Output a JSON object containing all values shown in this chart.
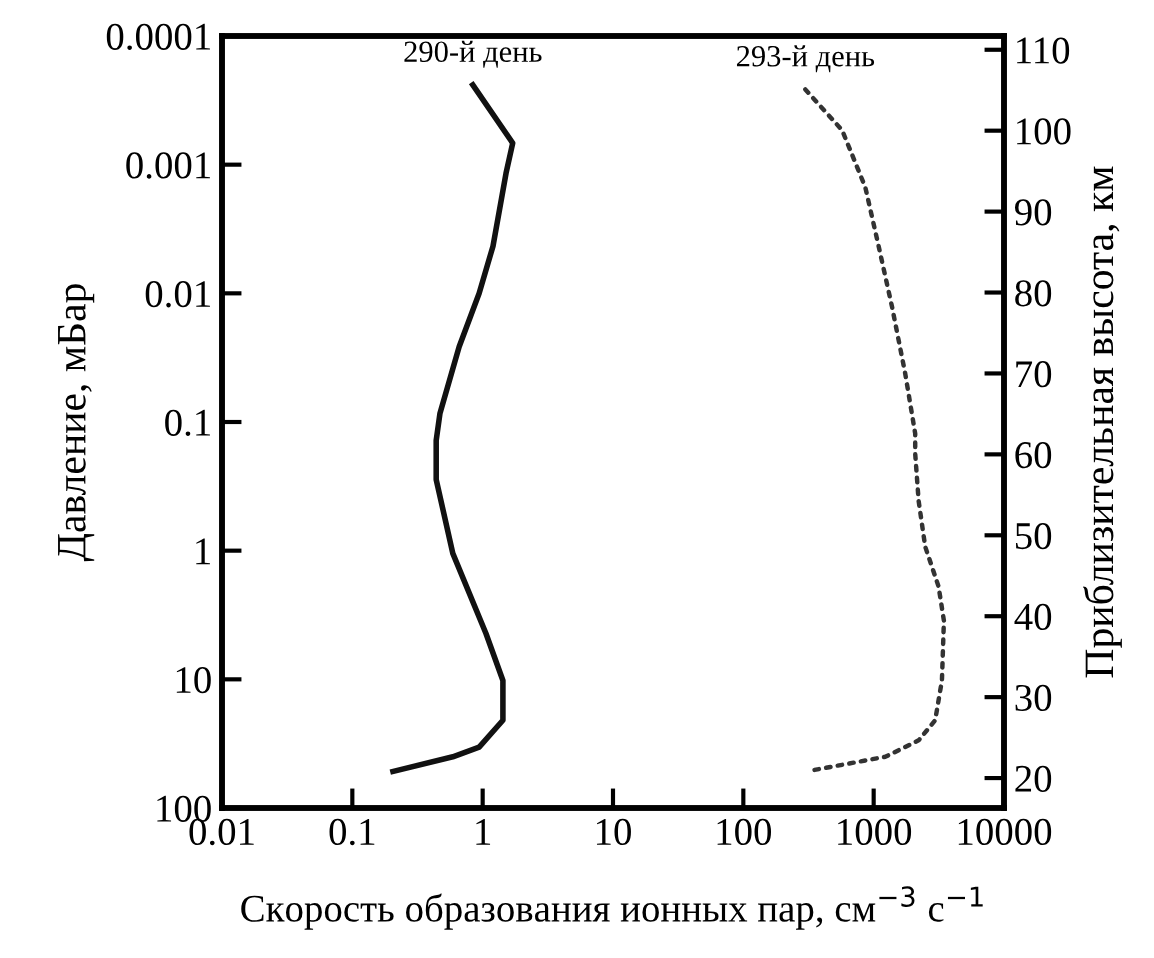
{
  "chart_data": {
    "type": "line",
    "xlabel": "Скорость образования ионных пар, см$^{−3}$ с$^{−1}$",
    "ylabel": "Давление, мБар",
    "y2label": "Приблизительная высота, км",
    "log": "xy",
    "xlim": [
      0.01,
      10000
    ],
    "xticks": [
      0.01,
      0.1,
      1,
      10,
      100,
      1000,
      10000
    ],
    "ylim": [
      100,
      0.0001
    ],
    "yticks": [
      0.0001,
      0.001,
      0.01,
      0.1,
      1,
      10,
      100
    ],
    "y2lim": [
      16.3,
      111.7
    ],
    "y2ticks": [
      20,
      30,
      40,
      50,
      60,
      70,
      80,
      90,
      100,
      110
    ],
    "grid": false,
    "legend": false,
    "series": [
      {
        "name": "290-й день",
        "color": "#111111",
        "line_style": "solid",
        "x": [
          0.84,
          1.7,
          1.51,
          1.2,
          0.94,
          0.66,
          0.47,
          0.44,
          0.44,
          0.59,
          1.06,
          1.43,
          1.43,
          0.94,
          0.59,
          0.205
        ],
        "values": [
          0.00024,
          0.00068,
          0.00117,
          0.0043,
          0.01,
          0.026,
          0.086,
          0.139,
          0.28,
          1.05,
          4.4,
          10.2,
          20.8,
          33.6,
          40,
          52
        ]
      },
      {
        "name": "293-й день",
        "color": "#333333",
        "line_style": "dotted",
        "x": [
          299,
          573,
          863,
          1092,
          1383,
          1746,
          2083,
          2083,
          2213,
          2485,
          3148,
          3459,
          3340,
          2965,
          2213,
          1227,
          337
        ],
        "values": [
          0.00026,
          0.00054,
          0.0015,
          0.0043,
          0.0127,
          0.042,
          0.123,
          0.176,
          0.41,
          0.93,
          1.9,
          3.5,
          10.2,
          20.8,
          29.8,
          40,
          51
        ]
      }
    ]
  }
}
